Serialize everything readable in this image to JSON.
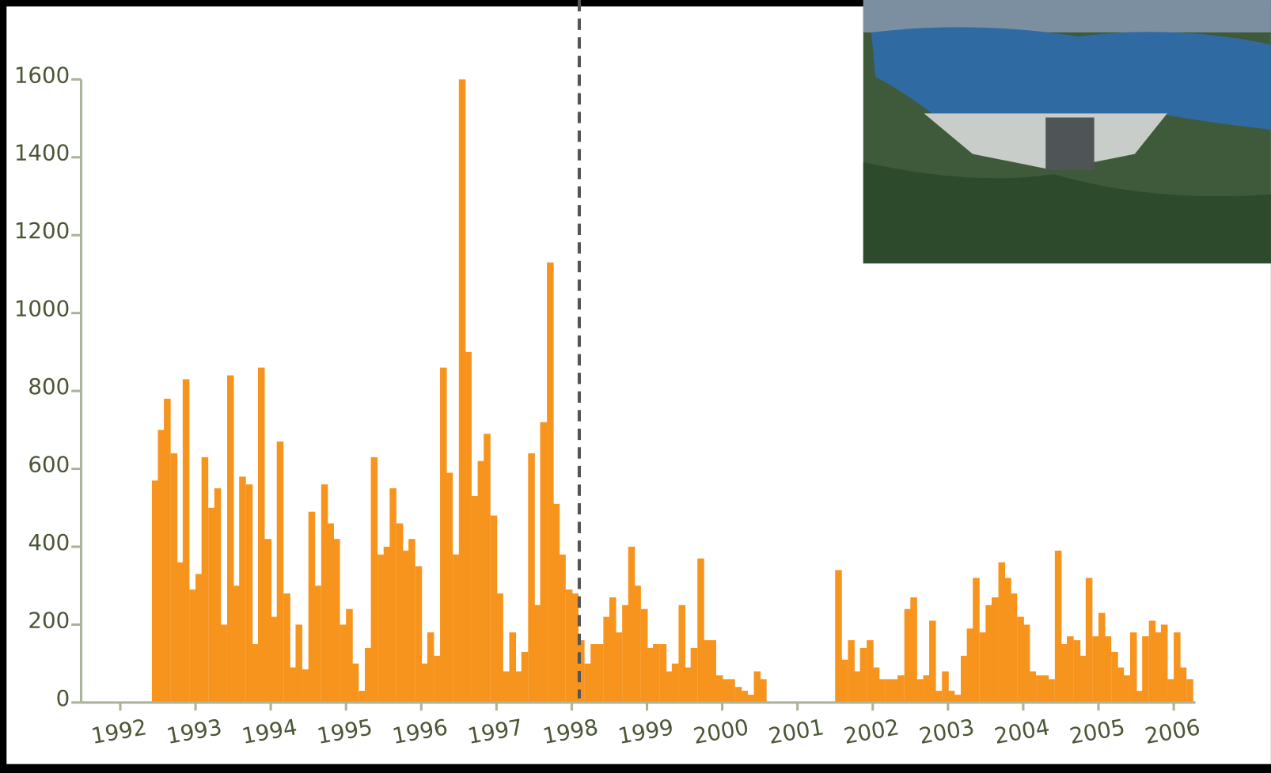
{
  "chart_data": {
    "type": "bar",
    "color": "#f7941d",
    "x": [
      1992.42,
      1992.5,
      1992.58,
      1992.67,
      1992.75,
      1992.83,
      1992.92,
      1993.0,
      1993.08,
      1993.17,
      1993.25,
      1993.33,
      1993.42,
      1993.5,
      1993.58,
      1993.67,
      1993.75,
      1993.83,
      1993.92,
      1994.0,
      1994.08,
      1994.17,
      1994.25,
      1994.33,
      1994.42,
      1994.5,
      1994.58,
      1994.67,
      1994.75,
      1994.83,
      1994.92,
      1995.0,
      1995.08,
      1995.17,
      1995.25,
      1995.33,
      1995.42,
      1995.5,
      1995.58,
      1995.67,
      1995.75,
      1995.83,
      1995.92,
      1996.0,
      1996.08,
      1996.17,
      1996.25,
      1996.33,
      1996.42,
      1996.5,
      1996.58,
      1996.67,
      1996.75,
      1996.83,
      1996.92,
      1997.0,
      1997.08,
      1997.17,
      1997.25,
      1997.33,
      1997.42,
      1997.5,
      1997.58,
      1997.67,
      1997.75,
      1997.83,
      1997.92,
      1998.0,
      1998.08,
      1998.17,
      1998.25,
      1998.33,
      1998.42,
      1998.5,
      1998.58,
      1998.67,
      1998.75,
      1998.83,
      1998.92,
      1999.0,
      1999.08,
      1999.17,
      1999.25,
      1999.33,
      1999.42,
      1999.5,
      1999.58,
      1999.67,
      1999.75,
      1999.83,
      1999.92,
      2000.0,
      2000.08,
      2000.17,
      2000.25,
      2000.33,
      2000.42,
      2000.5,
      2001.5,
      2001.58,
      2001.67,
      2001.75,
      2001.83,
      2001.92,
      2002.0,
      2002.08,
      2002.17,
      2002.25,
      2002.33,
      2002.42,
      2002.5,
      2002.58,
      2002.67,
      2002.75,
      2002.83,
      2002.92,
      2003.0,
      2003.08,
      2003.17,
      2003.25,
      2003.33,
      2003.42,
      2003.5,
      2003.58,
      2003.67,
      2003.75,
      2003.83,
      2003.92,
      2004.0,
      2004.08,
      2004.17,
      2004.25,
      2004.33,
      2004.42,
      2004.5,
      2004.58,
      2004.67,
      2004.75,
      2004.83,
      2004.92,
      2005.0,
      2005.08,
      2005.17,
      2005.25,
      2005.33,
      2005.42,
      2005.5,
      2005.58,
      2005.67,
      2005.75,
      2005.83,
      2005.92,
      2006.0,
      2006.08,
      2006.17
    ],
    "values": [
      570,
      700,
      780,
      640,
      360,
      830,
      290,
      330,
      630,
      500,
      550,
      200,
      840,
      300,
      580,
      560,
      150,
      860,
      420,
      220,
      670,
      280,
      90,
      200,
      85,
      490,
      300,
      560,
      460,
      420,
      200,
      240,
      100,
      30,
      140,
      630,
      380,
      400,
      550,
      460,
      390,
      420,
      350,
      100,
      180,
      120,
      860,
      590,
      380,
      1600,
      900,
      530,
      620,
      690,
      480,
      280,
      80,
      180,
      80,
      130,
      640,
      250,
      720,
      1130,
      510,
      380,
      290,
      280,
      160,
      100,
      150,
      150,
      220,
      270,
      180,
      250,
      400,
      300,
      240,
      140,
      150,
      150,
      80,
      100,
      250,
      90,
      140,
      370,
      160,
      160,
      70,
      60,
      60,
      40,
      30,
      20,
      80,
      60,
      340,
      110,
      160,
      80,
      140,
      160,
      90,
      60,
      60,
      60,
      70,
      240,
      270,
      60,
      70,
      210,
      30,
      80,
      30,
      20,
      120,
      190,
      320,
      180,
      250,
      270,
      360,
      320,
      280,
      220,
      200,
      80,
      70,
      70,
      60,
      390,
      150,
      170,
      160,
      120,
      320,
      170,
      230,
      170,
      130,
      90,
      70,
      180,
      30,
      170,
      210,
      180,
      200,
      60,
      180,
      90,
      60
    ],
    "xlim": [
      1991.48,
      2006.29
    ],
    "xticks": [
      1992,
      1993,
      1994,
      1995,
      1996,
      1997,
      1998,
      1999,
      2000,
      2001,
      2002,
      2003,
      2004,
      2005,
      2006
    ],
    "ylim": [
      0,
      1600
    ],
    "yticks": [
      0,
      200,
      400,
      600,
      800,
      1000,
      1200,
      1400,
      1600
    ],
    "reference_x": 1998.1
  }
}
